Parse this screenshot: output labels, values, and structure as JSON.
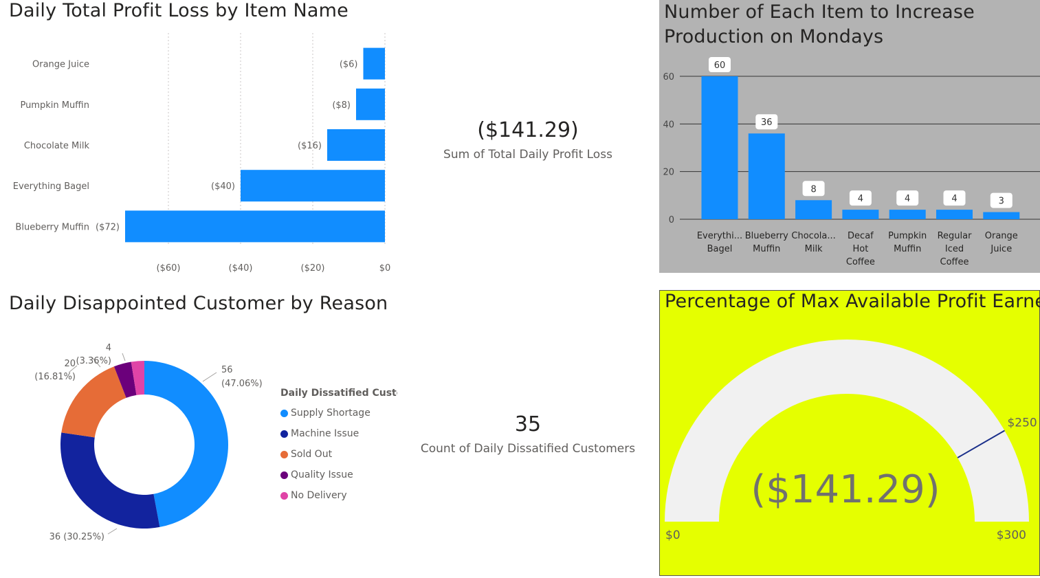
{
  "titles": {
    "profit_loss": "Daily Total Profit Loss by Item Name",
    "production": "Number of Each Item to Increase Production on Mondays",
    "disappointed": "Daily Disappointed Customer by Reason",
    "percentage": "Percentage of Max Available Profit Earned"
  },
  "cards": {
    "profit_loss_value": "($141.29)",
    "profit_loss_label": "Sum of Total Daily Profit Loss",
    "dissatisfied_value": "35",
    "dissatisfied_label": "Count of Daily Dissatified Customers"
  },
  "legend": {
    "title": "Daily Dissatified Customers"
  },
  "chart_data": [
    {
      "id": "bar_profit_loss",
      "type": "bar",
      "orientation": "horizontal",
      "title": "Daily Total Profit Loss by Item Name",
      "categories": [
        "Orange Juice",
        "Pumpkin Muffin",
        "Chocolate Milk",
        "Everything Bagel",
        "Blueberry Muffin"
      ],
      "values": [
        -6,
        -8,
        -16,
        -40,
        -72
      ],
      "value_labels": [
        "($6)",
        "($8)",
        "($16)",
        "($40)",
        "($72)"
      ],
      "xlim": [
        -72,
        0
      ],
      "xticks": [
        -60,
        -40,
        -20,
        0
      ],
      "xtick_labels": [
        "($60)",
        "($40)",
        "($20)",
        "$0"
      ],
      "gridlines": "vertical dotted",
      "color": "#118dff"
    },
    {
      "id": "column_production",
      "type": "bar",
      "orientation": "vertical",
      "title": "Number of Each Item to Increase Production on Mondays",
      "categories": [
        [
          "Everythi...",
          "Bagel"
        ],
        [
          "Blueberry",
          "Muffin"
        ],
        [
          "Chocola...",
          "Milk"
        ],
        [
          "Decaf",
          "Hot",
          "Coffee"
        ],
        [
          "Pumpkin",
          "Muffin"
        ],
        [
          "Regular",
          "Iced",
          "Coffee"
        ],
        [
          "Orange",
          "Juice"
        ]
      ],
      "values": [
        60,
        36,
        8,
        4,
        4,
        4,
        3
      ],
      "ylim": [
        0,
        60
      ],
      "yticks": [
        0,
        20,
        40,
        60
      ],
      "gridlines": "horizontal",
      "color": "#118dff"
    },
    {
      "id": "donut_reasons",
      "type": "pie",
      "variant": "donut",
      "title": "Daily Disappointed Customer by Reason",
      "legend_title": "Daily Dissatified Customers",
      "legend_position": "right",
      "slices": [
        {
          "label": "Supply Shortage",
          "value": 56,
          "percent_label": "(47.06%)",
          "color": "#118dff"
        },
        {
          "label": "Machine Issue",
          "value": 36,
          "percent_label": "(30.25%)",
          "color": "#12239e"
        },
        {
          "label": "Sold Out",
          "value": 20,
          "percent_label": "(16.81%)",
          "color": "#e66c37"
        },
        {
          "label": "Quality Issue",
          "value": 4,
          "percent_label": "(3.36%)",
          "color": "#6b007b"
        },
        {
          "label": "No Delivery",
          "value": 3,
          "percent_label": "",
          "color": "#e044a7"
        }
      ],
      "data_labels": [
        "56",
        "(47.06%)",
        "36 (30.25%)",
        "20",
        "(16.81%)",
        "4",
        "(3.36%)"
      ]
    },
    {
      "id": "gauge_profit",
      "type": "gauge",
      "title": "Percentage of Max Available Profit Earned",
      "value": -141.29,
      "value_label": "($141.29)",
      "min": 0,
      "max": 300,
      "target": 250,
      "min_label": "$0",
      "max_label": "$300",
      "target_label": "$250",
      "track_color": "#f1f1f1",
      "target_color": "#1a2f8a"
    }
  ]
}
